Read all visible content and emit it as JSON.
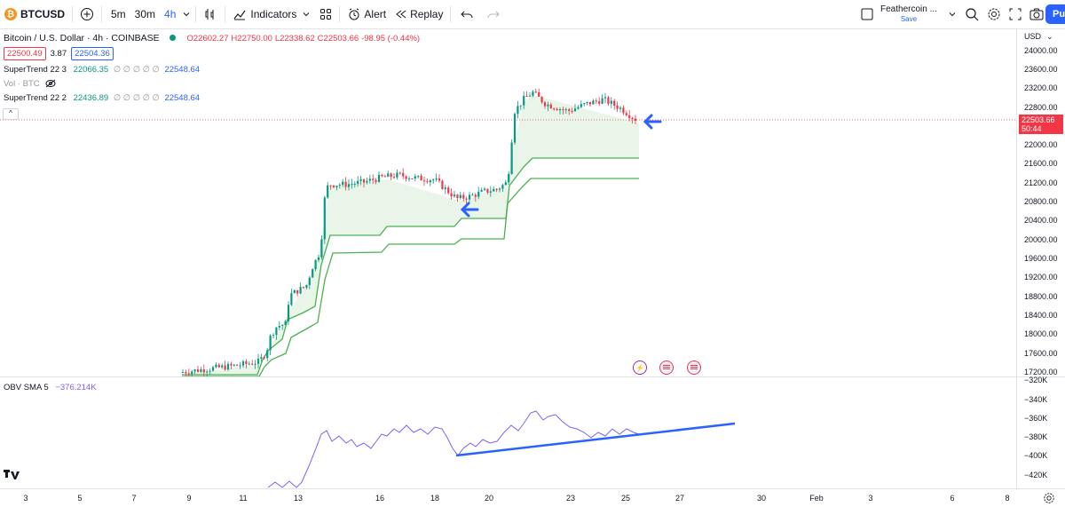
{
  "toolbar": {
    "symbol": "BTCUSD",
    "intervals": [
      "5m",
      "30m",
      "4h"
    ],
    "indicators_label": "Indicators",
    "alert_label": "Alert",
    "replay_label": "Replay",
    "layout_name": "Feathercoin ...",
    "save_label": "Save",
    "publish_label": "Pu"
  },
  "legend": {
    "title": "Bitcoin / U.S. Dollar · 4h · COINBASE",
    "open": "O22602.27",
    "high": "H22750.00",
    "low": "L22338.62",
    "close": "C22503.66",
    "change": "-98.95 (-0.44%)",
    "bid": "22500.49",
    "spread": "3.87",
    "ask": "22504.36"
  },
  "indicators": [
    {
      "name": "SuperTrend 22 3",
      "value": "22066.35",
      "zeros": "∅ ∅ ∅ ∅ ∅",
      "value2": "22548.64"
    },
    {
      "name": "Vol · BTC",
      "value": "",
      "zeros": "",
      "value2": ""
    },
    {
      "name": "SuperTrend 22 2",
      "value": "22436.89",
      "zeros": "∅ ∅ ∅ ∅ ∅",
      "value2": "22548.64"
    }
  ],
  "price_scale": {
    "currency": "USD",
    "ticks": [
      "24000.00",
      "23600.00",
      "23200.00",
      "22800.00",
      "22000.00",
      "21600.00",
      "21200.00",
      "20800.00",
      "20400.00",
      "20000.00",
      "19600.00",
      "19200.00",
      "18800.00",
      "18400.00",
      "18000.00",
      "17600.00",
      "17200.00"
    ],
    "last_price": "22503.66",
    "countdown": "50:44"
  },
  "obv": {
    "label": "OBV SMA 5",
    "value": "−376.214K",
    "ticks": [
      "−320K",
      "−340K",
      "−360K",
      "−380K",
      "−400K",
      "−420K"
    ]
  },
  "time_axis": {
    "ticks": [
      "3",
      "5",
      "7",
      "9",
      "11",
      "13",
      "16",
      "18",
      "20",
      "23",
      "25",
      "27",
      "30",
      "Feb",
      "3",
      "6",
      "8"
    ]
  },
  "colors": {
    "up": "#089981",
    "down": "#f23645",
    "supertrend": "#4caf50",
    "obv": "#7b61ff",
    "annotation": "#2962ff"
  },
  "icons": [
    "bitcoin-logo",
    "plus-icon",
    "chevron-down-icon",
    "bar-style-icon",
    "indicators-icon",
    "layout-grid-icon",
    "alert-icon",
    "replay-icon",
    "undo-icon",
    "redo-icon",
    "checkbox-icon",
    "search-icon",
    "gear-icon",
    "fullscreen-icon",
    "camera-icon",
    "eye-off-icon",
    "tradingview-logo"
  ]
}
